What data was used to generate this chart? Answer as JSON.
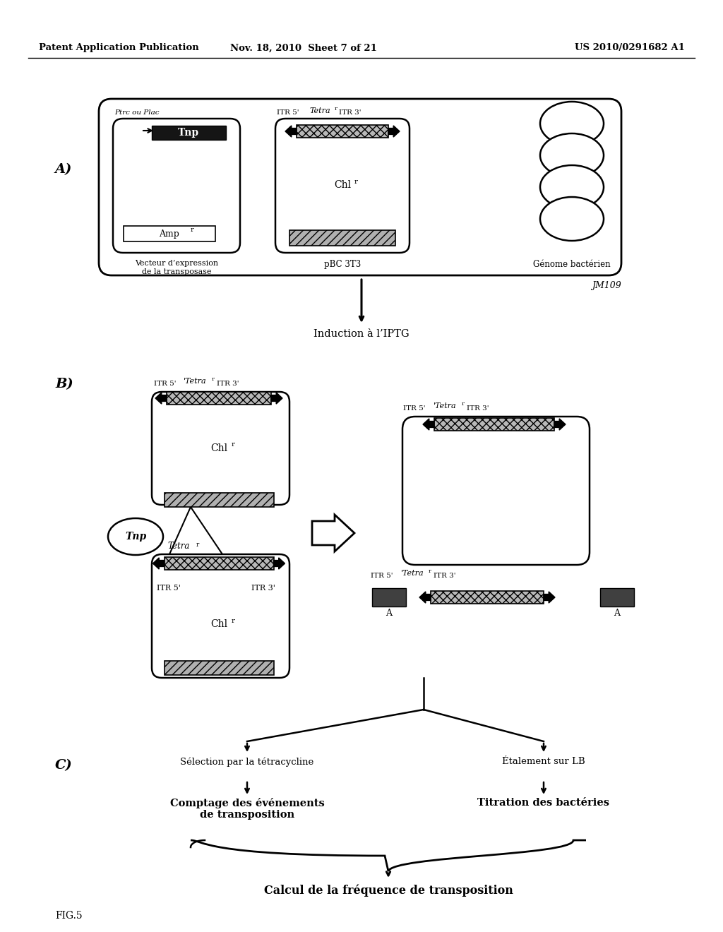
{
  "header_left": "Patent Application Publication",
  "header_mid": "Nov. 18, 2010  Sheet 7 of 21",
  "header_right": "US 2010/0291682 A1",
  "fig_label": "FIG.5",
  "section_A_label": "A)",
  "section_B_label": "B)",
  "section_C_label": "C)",
  "jm109_label": "JM109",
  "ptrc_label": "Ptrc ou Plac",
  "pBC3T3_label": "pBC 3T3",
  "genome_label": "Génome bactérien",
  "vecteur_label": "Vecteur d’expression\nde la transposase",
  "tnp_label": "Tnp",
  "ampr_label": "Amp",
  "chlr_label": "Chl",
  "tetra_label": "Tetra",
  "induction_label": "Induction à l’IPTG",
  "selection_label": "Sélection par la tétracycline",
  "etalement_label": "Étalement sur LB",
  "comptage_label": "Comptage des événements\nde transposition",
  "titration_label": "Titration des bactéries",
  "calcul_label": "Calcul de la fréquence de transposition",
  "bg_color": "#ffffff"
}
